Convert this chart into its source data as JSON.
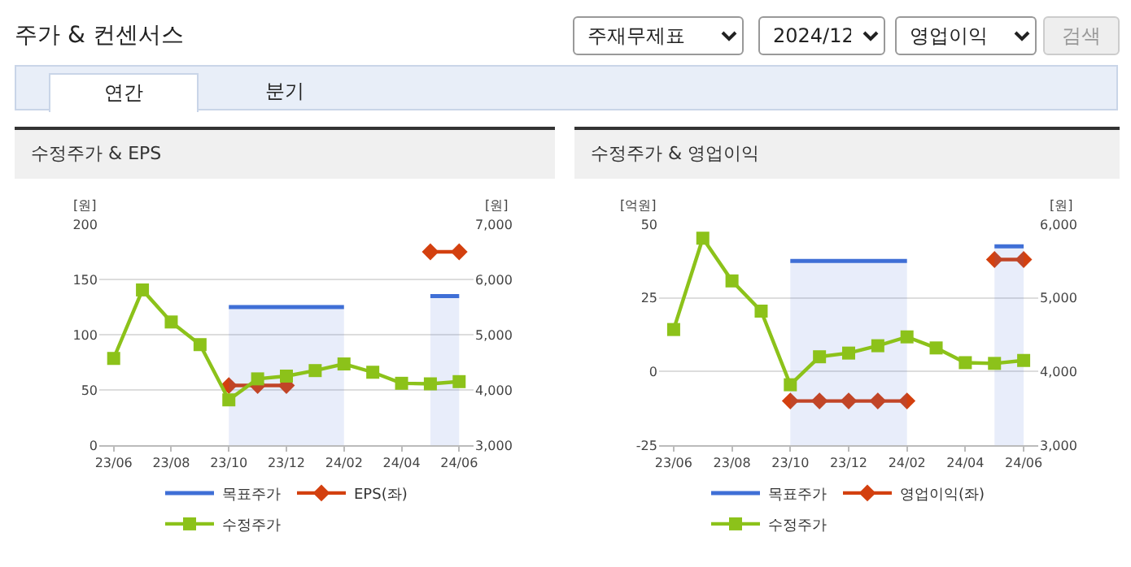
{
  "chart_data": [
    {
      "type": "other",
      "title": "주가 & 컨센서스",
      "annotations": [
        "주재무제표",
        "2024/12",
        "영업이익",
        "검색",
        "연간",
        "분기"
      ]
    },
    {
      "type": "line",
      "title": "수정주가 & EPS",
      "ylabel": "[원]",
      "y2label": "[원]",
      "categories": [
        "23/06",
        null,
        "23/08",
        null,
        "23/10",
        null,
        "23/12",
        null,
        "24/02",
        null,
        "24/04",
        null,
        "24/06"
      ],
      "series": [
        {
          "name": "목표주가",
          "type": "area",
          "axis": "y2",
          "color": "#3f6fd6",
          "values": [
            null,
            null,
            null,
            null,
            5500,
            5500,
            5500,
            5500,
            5500,
            null,
            null,
            5700,
            5700
          ]
        },
        {
          "name": "EPS(좌)",
          "type": "line",
          "marker": "diamond",
          "color": "#d3400f",
          "values": [
            null,
            null,
            null,
            null,
            54,
            54,
            54,
            null,
            null,
            null,
            null,
            175,
            175
          ]
        },
        {
          "name": "수정주가",
          "type": "line",
          "marker": "square",
          "axis": "y2",
          "color": "#8cc21a",
          "values": [
            4570,
            5810,
            5230,
            4820,
            3820,
            4200,
            4250,
            4350,
            4470,
            4320,
            4120,
            4110,
            4150
          ]
        }
      ],
      "ylim": [
        0,
        200
      ],
      "yticks": [
        0,
        50,
        100,
        150,
        200
      ],
      "y2lim": [
        3000,
        7000
      ],
      "y2ticks": [
        {
          "value": 3000,
          "label": "3,000"
        },
        {
          "value": 4000,
          "label": "4,000"
        },
        {
          "value": 5000,
          "label": "5,000"
        },
        {
          "value": 6000,
          "label": "6,000"
        },
        {
          "value": 7000,
          "label": "7,000"
        }
      ],
      "grid": "y",
      "legend": "bottom"
    },
    {
      "type": "line",
      "title": "수정주가 & 영업이익",
      "ylabel": "[억원]",
      "y2label": "[원]",
      "categories": [
        "23/06",
        null,
        "23/08",
        null,
        "23/10",
        null,
        "23/12",
        null,
        "24/02",
        null,
        "24/04",
        null,
        "24/06"
      ],
      "series": [
        {
          "name": "목표주가",
          "type": "area",
          "axis": "y2",
          "color": "#3f6fd6",
          "values": [
            null,
            null,
            null,
            null,
            5500,
            5500,
            5500,
            5500,
            5500,
            null,
            null,
            5700,
            5700
          ]
        },
        {
          "name": "영업이익(좌)",
          "type": "line",
          "marker": "diamond",
          "color": "#d3400f",
          "values": [
            null,
            null,
            null,
            null,
            -10,
            -10,
            -10,
            -10,
            -10,
            null,
            null,
            38,
            38
          ]
        },
        {
          "name": "수정주가",
          "type": "line",
          "marker": "square",
          "axis": "y2",
          "color": "#8cc21a",
          "values": [
            4570,
            5810,
            5230,
            4820,
            3820,
            4200,
            4250,
            4350,
            4470,
            4320,
            4120,
            4110,
            4150
          ]
        }
      ],
      "ylim": [
        -25,
        50
      ],
      "yticks": [
        -25,
        0,
        25,
        50
      ],
      "y2lim": [
        3000,
        6000
      ],
      "y2ticks": [
        {
          "value": 3000,
          "label": "3,000"
        },
        {
          "value": 4000,
          "label": "4,000"
        },
        {
          "value": 5000,
          "label": "5,000"
        },
        {
          "value": 6000,
          "label": "6,000"
        }
      ],
      "grid": "y",
      "legend": "bottom"
    }
  ]
}
